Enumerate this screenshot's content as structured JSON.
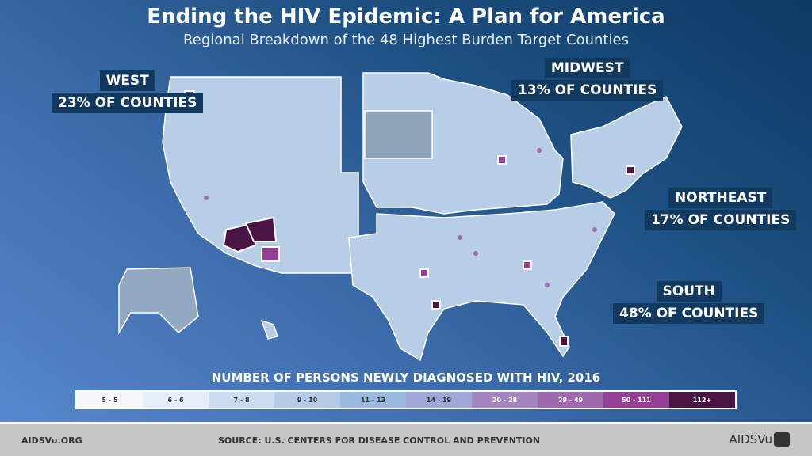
{
  "title": "Ending the HIV Epidemic: A Plan for America",
  "subtitle": "Regional Breakdown of the 48 Highest Burden Target Counties",
  "regions": [
    {
      "name": "WEST",
      "share": "23% OF COUNTIES"
    },
    {
      "name": "MIDWEST",
      "share": "13% OF COUNTIES"
    },
    {
      "name": "NORTHEAST",
      "share": "17% OF COUNTIES"
    },
    {
      "name": "SOUTH",
      "share": "48% OF COUNTIES"
    }
  ],
  "legend": {
    "title": "NUMBER OF PERSONS NEWLY DIAGNOSED WITH HIV, 2016",
    "bins": [
      {
        "label": "5 - 5",
        "color": "#f4f8fc"
      },
      {
        "label": "6 - 6",
        "color": "#e6eff9"
      },
      {
        "label": "7 - 8",
        "color": "#cadcf0"
      },
      {
        "label": "9 - 10",
        "color": "#b3cbe6"
      },
      {
        "label": "11 - 13",
        "color": "#9ab9de"
      },
      {
        "label": "14 - 19",
        "color": "#9fa8d6"
      },
      {
        "label": "20 - 28",
        "color": "#a585c0"
      },
      {
        "label": "29 - 49",
        "color": "#a06aae"
      },
      {
        "label": "50 - 111",
        "color": "#963f96"
      },
      {
        "label": "112+",
        "color": "#4a1444"
      }
    ]
  },
  "colors": {
    "map_base": "#b8cde6",
    "no_data": "#8ea3b8",
    "target_outline": "#ffffff",
    "label_bg": "#123a60",
    "footer_bg": "#c6c6c6"
  },
  "footer": {
    "left": "AIDSVu.ORG",
    "source": "SOURCE: U.S. CENTERS FOR DISEASE CONTROL AND PREVENTION",
    "logo": "AIDSVu"
  }
}
